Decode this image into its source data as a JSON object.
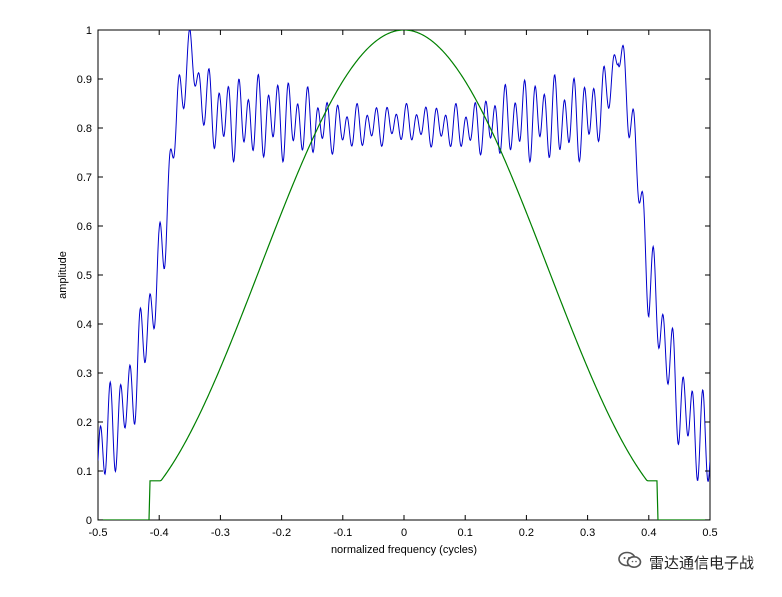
{
  "chart_data": {
    "type": "line",
    "title": "",
    "xlabel": "normalized frequency (cycles)",
    "ylabel": "amplitude",
    "xlim": [
      -0.5,
      0.5
    ],
    "ylim": [
      0,
      1
    ],
    "xticks": [
      "-0.5",
      "-0.4",
      "-0.3",
      "-0.2",
      "-0.1",
      "0",
      "0.1",
      "0.2",
      "0.3",
      "0.4",
      "0.5"
    ],
    "yticks": [
      "0",
      "0.1",
      "0.2",
      "0.3",
      "0.4",
      "0.5",
      "0.6",
      "0.7",
      "0.8",
      "0.9",
      "1"
    ],
    "grid": false,
    "series": [
      {
        "color": "#0000cc",
        "description_x": [
          -0.5,
          -0.45,
          -0.4,
          -0.37,
          -0.35,
          -0.33,
          -0.3,
          -0.2,
          -0.1,
          0,
          0.1,
          0.2,
          0.3,
          0.33,
          0.35,
          0.37,
          0.4,
          0.45,
          0.5
        ],
        "description_y": [
          0.14,
          0.24,
          0.5,
          0.84,
          0.96,
          0.86,
          0.82,
          0.82,
          0.8,
          0.81,
          0.8,
          0.82,
          0.82,
          0.86,
          0.96,
          0.84,
          0.5,
          0.24,
          0.14
        ],
        "ripple_amplitude": [
          0.11,
          0.1,
          0.1,
          0.08,
          0.05,
          0.07,
          0.09,
          0.09,
          0.05,
          0.04,
          0.05,
          0.09,
          0.09,
          0.07,
          0.05,
          0.08,
          0.1,
          0.1,
          0.11
        ]
      },
      {
        "color": "#008000",
        "x": [
          -0.5,
          -0.415,
          -0.415,
          -0.4,
          -0.35,
          -0.3,
          -0.25,
          -0.2,
          -0.15,
          -0.1,
          -0.05,
          0,
          0.05,
          0.1,
          0.15,
          0.2,
          0.25,
          0.3,
          0.35,
          0.4,
          0.415,
          0.415,
          0.5
        ],
        "y": [
          0,
          0,
          0.08,
          0.085,
          0.14,
          0.25,
          0.39,
          0.54,
          0.69,
          0.83,
          0.95,
          1.0,
          0.95,
          0.83,
          0.69,
          0.54,
          0.39,
          0.25,
          0.14,
          0.085,
          0.08,
          0,
          0
        ]
      }
    ]
  },
  "watermark": {
    "icon": "wechat-icon",
    "text": "雷达通信电子战"
  }
}
